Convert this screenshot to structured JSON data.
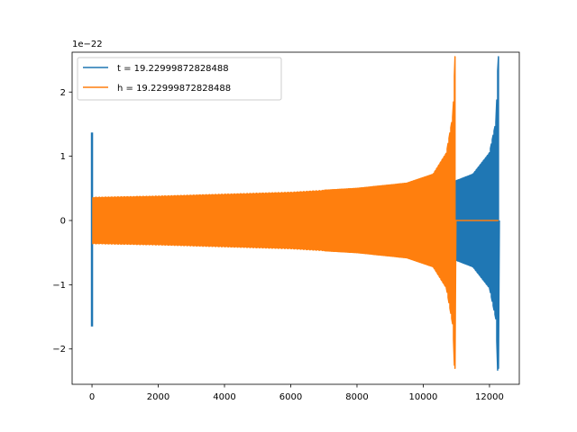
{
  "chart_data": {
    "type": "line",
    "title": "",
    "xlabel": "",
    "ylabel": "",
    "offset_text": "1e−22",
    "xlim": [
      -600,
      12900
    ],
    "ylim": [
      -2.55,
      2.62
    ],
    "x_ticks": [
      {
        "value": 0,
        "label": "0"
      },
      {
        "value": 2000,
        "label": "2000"
      },
      {
        "value": 4000,
        "label": "4000"
      },
      {
        "value": 6000,
        "label": "6000"
      },
      {
        "value": 8000,
        "label": "8000"
      },
      {
        "value": 10000,
        "label": "10000"
      },
      {
        "value": 12000,
        "label": "12000"
      }
    ],
    "y_ticks": [
      {
        "value": -2,
        "label": "−2"
      },
      {
        "value": -1,
        "label": "−1"
      },
      {
        "value": 0,
        "label": "0"
      },
      {
        "value": 1,
        "label": "1"
      },
      {
        "value": 2,
        "label": "2"
      }
    ],
    "legend_position": "top-left",
    "series": [
      {
        "name": "t = 19.22999872828488",
        "color": "#1f77b4",
        "spike": {
          "x": 0,
          "ymax": 1.37,
          "ymin": -1.65
        },
        "envelope_x": [
          0,
          2000,
          4000,
          6000,
          8000,
          9500,
          10500,
          11000,
          11500,
          12000,
          12200,
          12260
        ],
        "envelope_amp": [
          0.36,
          0.38,
          0.4,
          0.43,
          0.48,
          0.52,
          0.56,
          0.62,
          0.72,
          1.05,
          1.55,
          2.55
        ],
        "amp_min_end": -2.3,
        "x_end": 12270,
        "visible_from": 10950
      },
      {
        "name": "h = 19.22999872828488",
        "color": "#ff7f0e",
        "envelope_x": [
          0,
          2000,
          4000,
          6000,
          8000,
          9500,
          10300,
          10700,
          10900,
          10960
        ],
        "envelope_amp": [
          0.36,
          0.38,
          0.41,
          0.44,
          0.5,
          0.58,
          0.72,
          1.05,
          1.65,
          2.55
        ],
        "amp_min_end": -2.3,
        "x_end": 10960,
        "flat_to": 12270
      }
    ]
  }
}
